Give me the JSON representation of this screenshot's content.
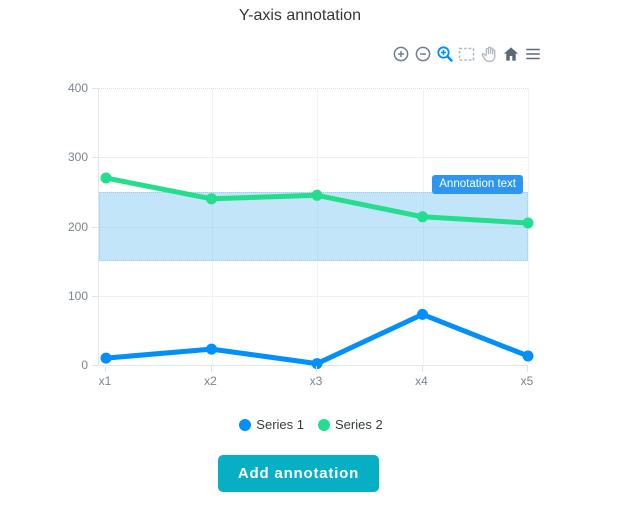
{
  "toolbar": {
    "icons": [
      {
        "name": "zoom-in-icon",
        "active": false
      },
      {
        "name": "zoom-out-icon",
        "active": false
      },
      {
        "name": "selection-zoom-icon",
        "active": true
      },
      {
        "name": "selection-icon",
        "active": false
      },
      {
        "name": "pan-icon",
        "active": false
      },
      {
        "name": "home-icon",
        "active": false
      },
      {
        "name": "menu-icon",
        "active": false
      }
    ],
    "active_color": "#008FFB",
    "base_color": "#6E8192",
    "light_color": "#AEB8C2",
    "dark_color": "#5C6A77"
  },
  "chart_data": {
    "type": "line",
    "title": "Y-axis annotation",
    "categories": [
      "x1",
      "x2",
      "x3",
      "x4",
      "x5"
    ],
    "series": [
      {
        "name": "Series 1",
        "color": "#008FFB",
        "values": [
          10,
          23,
          2,
          73,
          13
        ]
      },
      {
        "name": "Series 2",
        "color": "#24DE8D",
        "values": [
          270,
          240,
          245,
          214,
          205
        ]
      }
    ],
    "ylim": [
      0,
      400
    ],
    "yticks": [
      0,
      100,
      200,
      300,
      400
    ],
    "grid": true,
    "legend_position": "bottom",
    "annotation": {
      "y": 150,
      "y2": 250,
      "label": "Annotation text",
      "band_fill": "#c6e7f8",
      "label_bg": "#2E96F0",
      "label_color": "#ffffff"
    }
  },
  "legend": {
    "items": [
      {
        "label": "Series 1",
        "color": "#008FFB"
      },
      {
        "label": "Series 2",
        "color": "#24DE8D"
      }
    ]
  },
  "button": {
    "label": "Add annotation",
    "bg": "#06AFC3"
  }
}
